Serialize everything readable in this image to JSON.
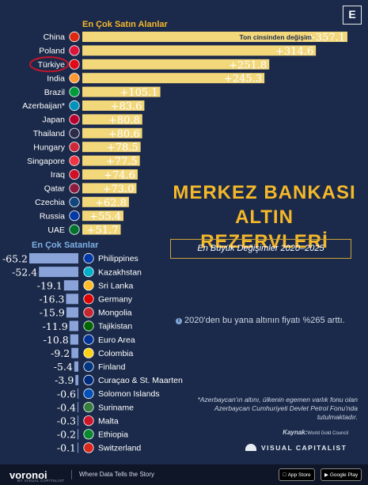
{
  "brand": {
    "badge": "E",
    "logo": "voronoi",
    "logo_sub": "BY VISUAL CAPITALIST",
    "tagline": "Where Data Tells the Story",
    "vc": "VISUAL CAPITALIST",
    "app_store": "App Store",
    "google_play": "Google Play"
  },
  "title": "MERKEZ BANKASI ALTIN REZERVLERİ",
  "subtitle": "En Büyük Değişimler 2020–2025",
  "note": "2020'den bu yana altının fiyatı %265 arttı.",
  "footnote": "*Azerbaycan'ın altını, ülkenin egemen varlık fonu olan Azerbaycan Cumhuriyeti Devlet Petrol Fonu'nda tutulmaktadır.",
  "source_label": "Kaynak:",
  "source": "World Gold Council",
  "colors": {
    "background": "#1b2a4a",
    "buyers_bar": "#f2d77b",
    "sellers_bar": "#8aa3d8",
    "accent": "#f5b829",
    "highlight_ring": "#c4162a"
  },
  "chart_data": [
    {
      "type": "bar",
      "title": "En Çok Satın Alanlar",
      "unit_label": "Ton cinsinden değişim",
      "categories": [
        "China",
        "Poland",
        "Türkiye",
        "India",
        "Brazil",
        "Azerbaijan*",
        "Japan",
        "Thailand",
        "Hungary",
        "Singapore",
        "Iraq",
        "Qatar",
        "Czechia",
        "Russia",
        "UAE"
      ],
      "labels": [
        "+357.1",
        "+314.6",
        "+251.8",
        "+245.3",
        "+105.1",
        "+83.6",
        "+80.8",
        "+80.6",
        "+78.5",
        "+77.5",
        "+74.6",
        "+73.0",
        "+62.8",
        "+55.4",
        "+51.7"
      ],
      "values": [
        357.1,
        314.6,
        251.8,
        245.3,
        105.1,
        83.6,
        80.8,
        80.6,
        78.5,
        77.5,
        74.6,
        73.0,
        62.8,
        55.4,
        51.7
      ],
      "highlight": "Türkiye"
    },
    {
      "type": "bar",
      "title": "En Çok Satanlar",
      "categories": [
        "Philippines",
        "Kazakhstan",
        "Sri Lanka",
        "Germany",
        "Mongolia",
        "Tajikistan",
        "Euro Area",
        "Colombia",
        "Finland",
        "Curaçao & St. Maarten",
        "Solomon Islands",
        "Suriname",
        "Malta",
        "Ethiopia",
        "Switzerland"
      ],
      "labels": [
        "-65.2",
        "-52.4",
        "-19.1",
        "-16.3",
        "-15.9",
        "-11.9",
        "-10.8",
        "-9.2",
        "-5.4",
        "-3.9",
        "-0.6",
        "-0.4",
        "-0.3",
        "-0.2",
        "-0.1"
      ],
      "values": [
        -65.2,
        -52.4,
        -19.1,
        -16.3,
        -15.9,
        -11.9,
        -10.8,
        -9.2,
        -5.4,
        -3.9,
        -0.6,
        -0.4,
        -0.3,
        -0.2,
        -0.1
      ]
    }
  ]
}
